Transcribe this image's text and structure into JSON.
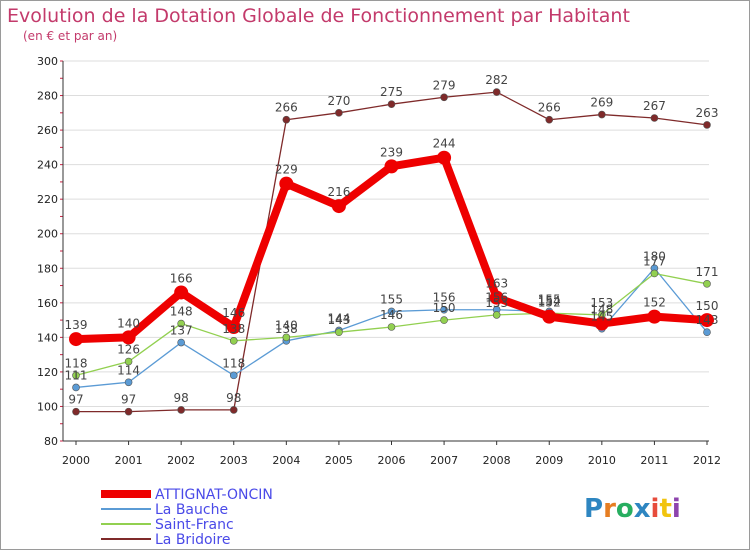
{
  "chart_data": {
    "type": "line",
    "title": "Evolution de la Dotation Globale de Fonctionnement par Habitant",
    "subtitle": "(en € et par an)",
    "xlabel": "",
    "ylabel": "",
    "x": [
      "2000",
      "2001",
      "2002",
      "2003",
      "2004",
      "2005",
      "2006",
      "2007",
      "2008",
      "2009",
      "2010",
      "2011",
      "2012"
    ],
    "ylim": [
      80,
      300
    ],
    "yticks": [
      80,
      100,
      120,
      140,
      160,
      180,
      200,
      220,
      240,
      260,
      280,
      300
    ],
    "grid": "horizontal",
    "legend_position": "bottom-left",
    "series": [
      {
        "name": "ATTIGNAT-ONCIN",
        "color": "#ee0000",
        "values": [
          139,
          140,
          166,
          146,
          229,
          216,
          239,
          244,
          163,
          152,
          148,
          152,
          150
        ]
      },
      {
        "name": "La Bauche",
        "color": "#5b9bd5",
        "values": [
          111,
          114,
          137,
          118,
          138,
          144,
          155,
          156,
          156,
          155,
          145,
          180,
          143
        ]
      },
      {
        "name": "Saint-Franc",
        "color": "#92d050",
        "values": [
          118,
          126,
          148,
          138,
          140,
          143,
          146,
          150,
          153,
          154,
          153,
          177,
          171
        ]
      },
      {
        "name": "La Bridoire",
        "color": "#7f2a2a",
        "values": [
          97,
          97,
          98,
          98,
          266,
          270,
          275,
          279,
          282,
          266,
          269,
          267,
          263
        ]
      }
    ]
  },
  "logo": {
    "text": "Proxiti",
    "colors": [
      "#2e86c1",
      "#e67e22",
      "#27ae60",
      "#2e86c1",
      "#e74c3c",
      "#f1c40f",
      "#8e44ad"
    ]
  }
}
